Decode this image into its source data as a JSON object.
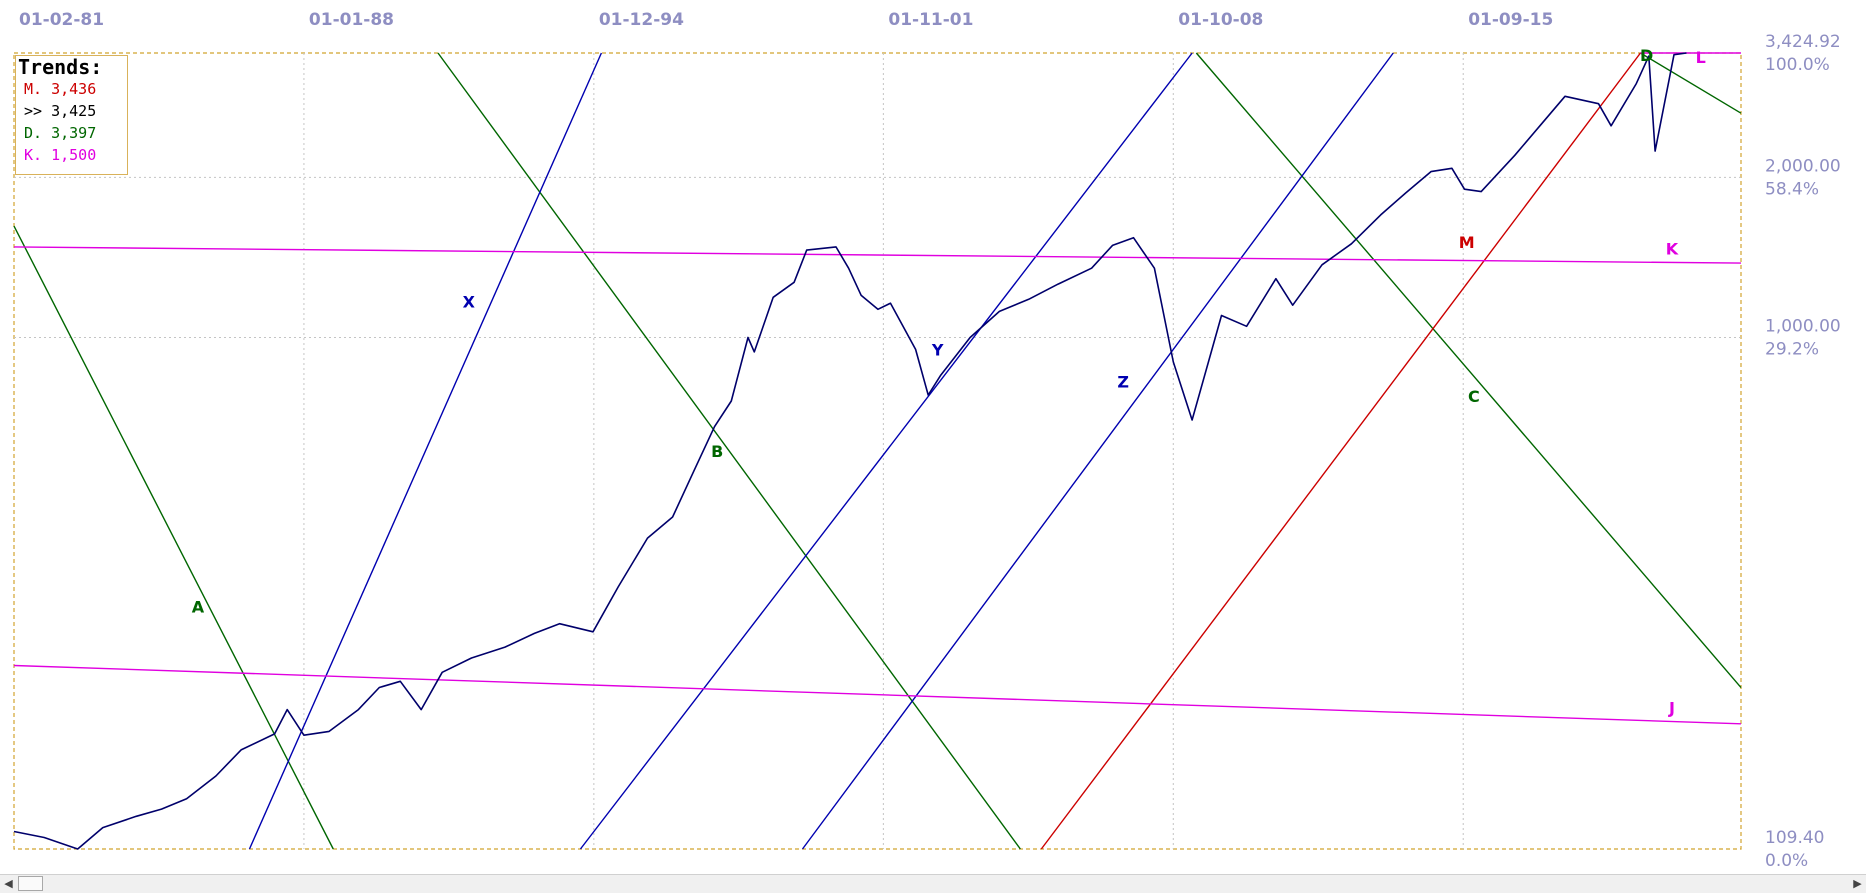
{
  "chart_data": {
    "type": "line",
    "title": "",
    "xlabel": "",
    "ylabel": "",
    "y_scale": "log",
    "x_range": [
      "1981-02",
      "2022-03"
    ],
    "ylim": [
      109.4,
      3424.92
    ],
    "grid": true,
    "legend_position": "top-left",
    "x_tick_labels": [
      "01-02-81",
      "01-01-88",
      "01-12-94",
      "01-11-01",
      "01-10-08",
      "01-09-15"
    ],
    "x_tick_values": [
      1981.08,
      1988.0,
      1994.92,
      2001.83,
      2008.75,
      2015.67
    ],
    "y_ticks": [
      {
        "value": 3424.92,
        "price_label": "3,424.92",
        "pct_label": "100.0%"
      },
      {
        "value": 2000.0,
        "price_label": "2,000.00",
        "pct_label": "58.4%"
      },
      {
        "value": 1000.0,
        "price_label": "1,000.00",
        "pct_label": "29.2%"
      },
      {
        "value": 109.4,
        "price_label": "109.40",
        "pct_label": "0.0%"
      }
    ],
    "series": [
      {
        "name": "",
        "color": "#00006b",
        "points": [
          [
            1981.08,
            118
          ],
          [
            1981.8,
            115
          ],
          [
            1982.6,
            109.4
          ],
          [
            1983.2,
            120
          ],
          [
            1984.0,
            126
          ],
          [
            1984.6,
            130
          ],
          [
            1985.2,
            136
          ],
          [
            1985.9,
            150
          ],
          [
            1986.5,
            168
          ],
          [
            1987.3,
            180
          ],
          [
            1987.6,
            200
          ],
          [
            1988.0,
            179
          ],
          [
            1988.6,
            182
          ],
          [
            1989.3,
            200
          ],
          [
            1989.8,
            220
          ],
          [
            1990.3,
            226
          ],
          [
            1990.8,
            200
          ],
          [
            1991.3,
            235
          ],
          [
            1992.0,
            250
          ],
          [
            1992.8,
            262
          ],
          [
            1993.5,
            278
          ],
          [
            1994.1,
            290
          ],
          [
            1994.9,
            280
          ],
          [
            1995.5,
            340
          ],
          [
            1996.2,
            420
          ],
          [
            1996.8,
            460
          ],
          [
            1997.3,
            560
          ],
          [
            1997.8,
            680
          ],
          [
            1998.2,
            760
          ],
          [
            1998.6,
            1000
          ],
          [
            1998.75,
            940
          ],
          [
            1999.2,
            1190
          ],
          [
            1999.7,
            1270
          ],
          [
            2000.0,
            1460
          ],
          [
            2000.7,
            1480
          ],
          [
            2001.0,
            1350
          ],
          [
            2001.3,
            1200
          ],
          [
            2001.7,
            1130
          ],
          [
            2002.0,
            1160
          ],
          [
            2002.6,
            950
          ],
          [
            2002.9,
            780
          ],
          [
            2003.2,
            850
          ],
          [
            2003.9,
            1000
          ],
          [
            2004.6,
            1120
          ],
          [
            2005.3,
            1180
          ],
          [
            2006.0,
            1260
          ],
          [
            2006.8,
            1350
          ],
          [
            2007.3,
            1490
          ],
          [
            2007.8,
            1540
          ],
          [
            2008.3,
            1350
          ],
          [
            2008.75,
            900
          ],
          [
            2009.2,
            700
          ],
          [
            2009.9,
            1100
          ],
          [
            2010.5,
            1050
          ],
          [
            2011.2,
            1290
          ],
          [
            2011.6,
            1150
          ],
          [
            2012.3,
            1370
          ],
          [
            2013.0,
            1500
          ],
          [
            2013.7,
            1700
          ],
          [
            2014.3,
            1870
          ],
          [
            2014.9,
            2050
          ],
          [
            2015.4,
            2080
          ],
          [
            2015.7,
            1900
          ],
          [
            2016.1,
            1880
          ],
          [
            2016.9,
            2200
          ],
          [
            2017.5,
            2500
          ],
          [
            2018.1,
            2840
          ],
          [
            2018.9,
            2750
          ],
          [
            2019.2,
            2500
          ],
          [
            2019.8,
            3000
          ],
          [
            2020.1,
            3380
          ],
          [
            2020.25,
            2240
          ],
          [
            2020.7,
            3400
          ],
          [
            2021.0,
            3424.92
          ]
        ]
      }
    ],
    "trend_lines": [
      {
        "label": "A",
        "color": "#006600",
        "points": [
          [
            1981.08,
            1620
          ],
          [
            1988.7,
            109.4
          ]
        ]
      },
      {
        "label": "B",
        "color": "#006600",
        "points": [
          [
            1991.2,
            3424.92
          ],
          [
            2005.1,
            109.4
          ]
        ]
      },
      {
        "label": "C",
        "color": "#006600",
        "points": [
          [
            2009.3,
            3424.92
          ],
          [
            2022.3,
            220
          ]
        ]
      },
      {
        "label": "D",
        "color": "#006600",
        "points": [
          [
            2019.9,
            3424.92
          ],
          [
            2022.3,
            2640
          ]
        ]
      },
      {
        "label": "X",
        "color": "#0000b0",
        "points": [
          [
            1986.7,
            109.4
          ],
          [
            1995.1,
            3424.92
          ]
        ]
      },
      {
        "label": "Y",
        "color": "#0000b0",
        "points": [
          [
            1994.6,
            109.4
          ],
          [
            2009.2,
            3424.92
          ]
        ]
      },
      {
        "label": "Z",
        "color": "#0000b0",
        "points": [
          [
            1999.9,
            109.4
          ],
          [
            2014.0,
            3424.92
          ]
        ]
      },
      {
        "label": "M",
        "color": "#cc0000",
        "points": [
          [
            2005.6,
            109.4
          ],
          [
            2019.9,
            3424.92
          ]
        ]
      },
      {
        "label": "K",
        "color": "#e000e0",
        "points": [
          [
            1981.08,
            1480
          ],
          [
            2022.3,
            1380
          ]
        ]
      },
      {
        "label": "J",
        "color": "#e000e0",
        "points": [
          [
            1981.08,
            242
          ],
          [
            2022.3,
            188
          ]
        ]
      },
      {
        "label": "L",
        "color": "#e000e0",
        "points": [
          [
            2019.9,
            3424.92
          ],
          [
            2022.3,
            3424.92
          ]
        ]
      }
    ],
    "legend": {
      "title": "Trends:",
      "entries": [
        {
          "text": "M. 3,436",
          "color": "#cc0000"
        },
        {
          "text": ">> 3,425",
          "color": "#000000"
        },
        {
          "text": "D. 3,397",
          "color": "#006600"
        },
        {
          "text": "K. 1,500",
          "color": "#e000e0"
        }
      ]
    }
  },
  "scrollbar": {
    "left_arrow": "◀",
    "right_arrow": "▶"
  }
}
